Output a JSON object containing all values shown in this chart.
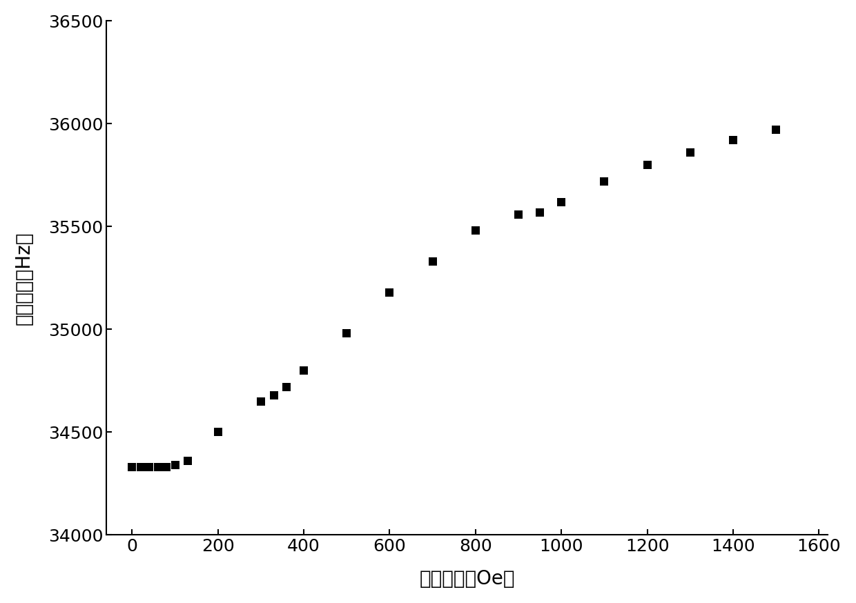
{
  "x": [
    0,
    20,
    40,
    60,
    80,
    100,
    130,
    200,
    300,
    330,
    360,
    400,
    500,
    600,
    700,
    800,
    900,
    950,
    1000,
    1100,
    1200,
    1300,
    1400,
    1500
  ],
  "y": [
    34330,
    34330,
    34330,
    34330,
    34330,
    34340,
    34360,
    34500,
    34650,
    34680,
    34720,
    34800,
    34980,
    35180,
    35330,
    35480,
    35560,
    35570,
    35620,
    35720,
    35800,
    35860,
    35920,
    35970
  ],
  "marker": "s",
  "marker_color": "#000000",
  "marker_size": 9,
  "xlabel": "磁场强度（Oe）",
  "ylabel": "谐振频率（Hz）",
  "xlim": [
    -60,
    1620
  ],
  "ylim": [
    34000,
    36500
  ],
  "xticks": [
    0,
    200,
    400,
    600,
    800,
    1000,
    1200,
    1400,
    1600
  ],
  "yticks": [
    34000,
    34500,
    35000,
    35500,
    36000,
    36500
  ],
  "background_color": "#ffffff",
  "axis_color": "#000000",
  "tick_fontsize": 18,
  "label_fontsize": 20,
  "linewidth": 1.5
}
